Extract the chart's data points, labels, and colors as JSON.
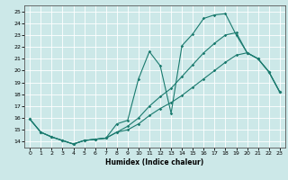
{
  "xlabel": "Humidex (Indice chaleur)",
  "bg_color": "#cce8e8",
  "grid_color": "#b0d4d4",
  "line_color": "#1a7a6e",
  "xlim": [
    -0.5,
    23.5
  ],
  "ylim": [
    13.5,
    25.5
  ],
  "xticks": [
    0,
    1,
    2,
    3,
    4,
    5,
    6,
    7,
    8,
    9,
    10,
    11,
    12,
    13,
    14,
    15,
    16,
    17,
    18,
    19,
    20,
    21,
    22,
    23
  ],
  "yticks": [
    14,
    15,
    16,
    17,
    18,
    19,
    20,
    21,
    22,
    23,
    24,
    25
  ],
  "line1_x": [
    0,
    1,
    2,
    3,
    4,
    5,
    6,
    7,
    8,
    9,
    10,
    11,
    12,
    13,
    14,
    15,
    16,
    17,
    18,
    19,
    20,
    21,
    22,
    23
  ],
  "line1_y": [
    15.9,
    14.8,
    14.4,
    14.1,
    13.8,
    14.1,
    14.2,
    14.3,
    15.5,
    15.8,
    19.3,
    21.6,
    20.4,
    16.4,
    22.1,
    23.1,
    24.4,
    24.7,
    24.8,
    23.0,
    21.5,
    21.0,
    19.9,
    18.2
  ],
  "line2_x": [
    0,
    1,
    2,
    3,
    4,
    5,
    6,
    7,
    8,
    9,
    10,
    11,
    12,
    13,
    14,
    15,
    16,
    17,
    18,
    19,
    20,
    21,
    22,
    23
  ],
  "line2_y": [
    15.9,
    14.8,
    14.4,
    14.1,
    13.8,
    14.1,
    14.2,
    14.3,
    14.8,
    15.3,
    16.0,
    17.0,
    17.8,
    18.5,
    19.5,
    20.5,
    21.5,
    22.3,
    23.0,
    23.2,
    21.5,
    21.0,
    19.9,
    18.2
  ],
  "line3_x": [
    0,
    1,
    2,
    3,
    4,
    5,
    6,
    7,
    8,
    9,
    10,
    11,
    12,
    13,
    14,
    15,
    16,
    17,
    18,
    19,
    20,
    21,
    22,
    23
  ],
  "line3_y": [
    15.9,
    14.8,
    14.4,
    14.1,
    13.8,
    14.1,
    14.2,
    14.3,
    14.8,
    15.0,
    15.5,
    16.2,
    16.8,
    17.3,
    17.9,
    18.6,
    19.3,
    20.0,
    20.7,
    21.3,
    21.5,
    21.0,
    19.9,
    18.2
  ]
}
